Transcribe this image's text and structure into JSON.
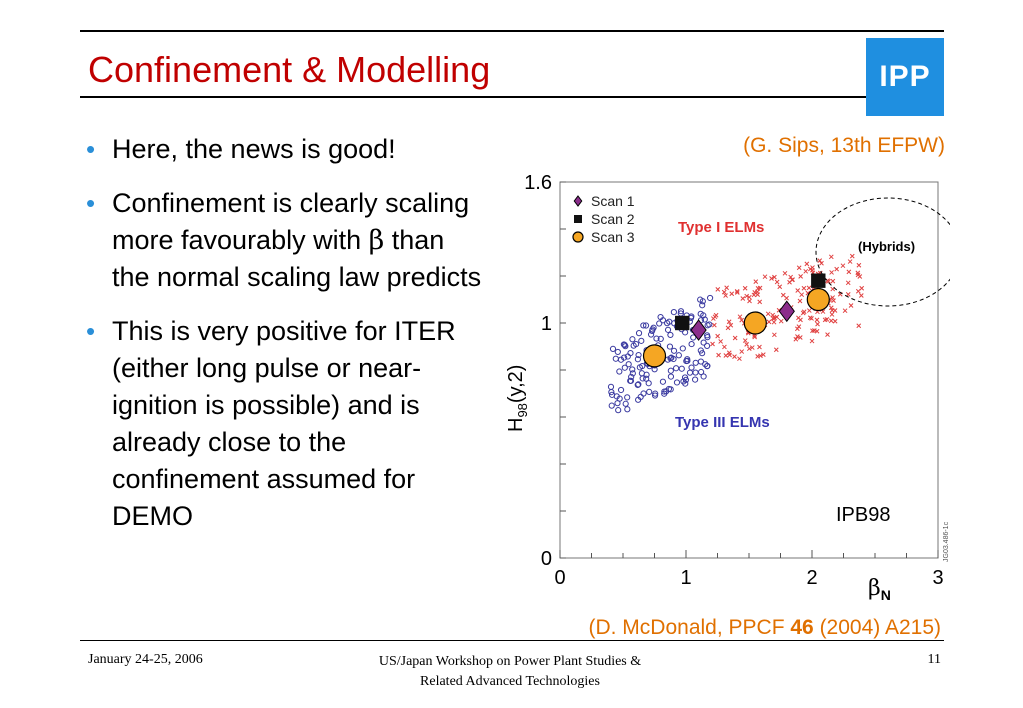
{
  "slide": {
    "title": "Confinement & Modelling",
    "logo_text": "IPP",
    "bullets": [
      {
        "pre": "Here, the news is good!",
        "symbol": "",
        "post": ""
      },
      {
        "pre": "Confinement is clearly scaling more favourably with ",
        "symbol": "β",
        "post": " than the normal scaling law predicts"
      },
      {
        "pre": "This is very positive for ITER (either long pulse or near-ignition is possible) and is already close to the confinement assumed for DEMO",
        "symbol": "",
        "post": ""
      }
    ],
    "citation_top": "(G. Sips, 13th EFPW)",
    "citation_bottom": {
      "pre": "(D. McDonald, PPCF ",
      "bold": "46",
      "post": " (2004) A215)"
    }
  },
  "chart_data": {
    "type": "scatter",
    "x_ticks": [
      "0",
      "1",
      "2",
      "3"
    ],
    "y_ticks": [
      "0",
      "1",
      "1.6"
    ],
    "xlim": [
      0,
      3
    ],
    "ylim": [
      0,
      1.6
    ],
    "ylabel_main": "H",
    "ylabel_sub": "98",
    "ylabel_rest": "(y,2)",
    "xlabel_main": "β",
    "xlabel_sub": "N",
    "legend": [
      "Scan 1",
      "Scan 2",
      "Scan 3"
    ],
    "annotations": {
      "type_i": "Type I ELMs",
      "type_iii": "Type III ELMs",
      "hybrids": "(Hybrids)",
      "scaling": "IPB98",
      "figure_id": "JG03.486-1c"
    },
    "series": [
      {
        "name": "Scan 1",
        "marker": "diamond",
        "color": "#8b2d8b",
        "x": [
          1.1,
          1.8
        ],
        "y": [
          0.97,
          1.05
        ]
      },
      {
        "name": "Scan 2",
        "marker": "square",
        "color": "#111111",
        "x": [
          0.97,
          2.05
        ],
        "y": [
          1.0,
          1.18
        ]
      },
      {
        "name": "Scan 3",
        "marker": "circle",
        "color": "#f5a623",
        "x": [
          0.75,
          1.55,
          2.05
        ],
        "y": [
          0.86,
          1.0,
          1.1
        ]
      }
    ],
    "type_i_cloud": {
      "x_range": [
        1.2,
        2.4
      ],
      "y_range": [
        0.8,
        1.32
      ],
      "color": "#e04040"
    },
    "type_iii_cloud": {
      "x_range": [
        0.4,
        1.2
      ],
      "y_range": [
        0.6,
        1.12
      ],
      "color": "#3a3aa0"
    }
  },
  "footer": {
    "date": "January 24-25, 2006",
    "event_line1": "US/Japan Workshop on Power Plant Studies &",
    "event_line2": "Related Advanced Technologies",
    "page": "11"
  }
}
